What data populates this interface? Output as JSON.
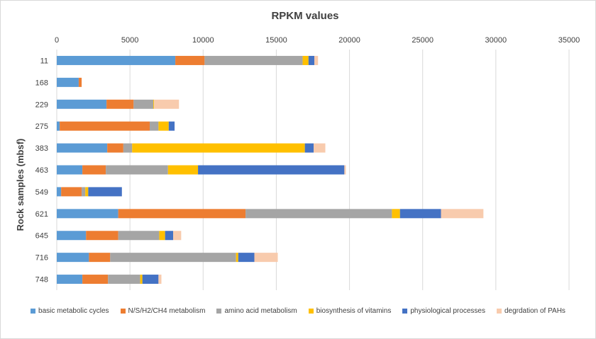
{
  "chart_data": {
    "type": "bar",
    "orientation": "horizontal",
    "stacked": true,
    "title": "RPKM values",
    "xlabel": "",
    "ylabel": "Rock samples  (mbsf)",
    "xlim": [
      0,
      35000
    ],
    "xticks": [
      0,
      5000,
      10000,
      15000,
      20000,
      25000,
      30000,
      35000
    ],
    "axis_position": "top",
    "legend_position": "bottom",
    "categories": [
      "11",
      "168",
      "229",
      "275",
      "383",
      "463",
      "549",
      "621",
      "645",
      "716",
      "748"
    ],
    "series": [
      {
        "name": "basic metabolic cycles",
        "color": "#5b9bd5",
        "values": [
          8100,
          1500,
          3400,
          200,
          3450,
          1750,
          300,
          4200,
          2000,
          2200,
          1750
        ]
      },
      {
        "name": "N/S/H2/CH4 metabolism",
        "color": "#ed7d31",
        "values": [
          2000,
          200,
          1850,
          6150,
          1100,
          1600,
          1400,
          8700,
          2200,
          1450,
          1750
        ]
      },
      {
        "name": "amino acid metabolism",
        "color": "#a5a5a5",
        "values": [
          6700,
          0,
          1350,
          600,
          600,
          4250,
          250,
          10000,
          2800,
          8600,
          2200
        ]
      },
      {
        "name": "biosynthesis of vitamins",
        "color": "#ffc000",
        "values": [
          400,
          0,
          50,
          700,
          11800,
          2050,
          200,
          550,
          400,
          150,
          150
        ]
      },
      {
        "name": "physiological processes",
        "color": "#4472c4",
        "values": [
          400,
          0,
          0,
          400,
          600,
          10000,
          2300,
          2800,
          550,
          1100,
          1100
        ]
      },
      {
        "name": "degrdation of PAHs",
        "color": "#f8cbad",
        "values": [
          250,
          0,
          1700,
          0,
          800,
          100,
          0,
          2900,
          550,
          1600,
          200
        ]
      }
    ]
  }
}
